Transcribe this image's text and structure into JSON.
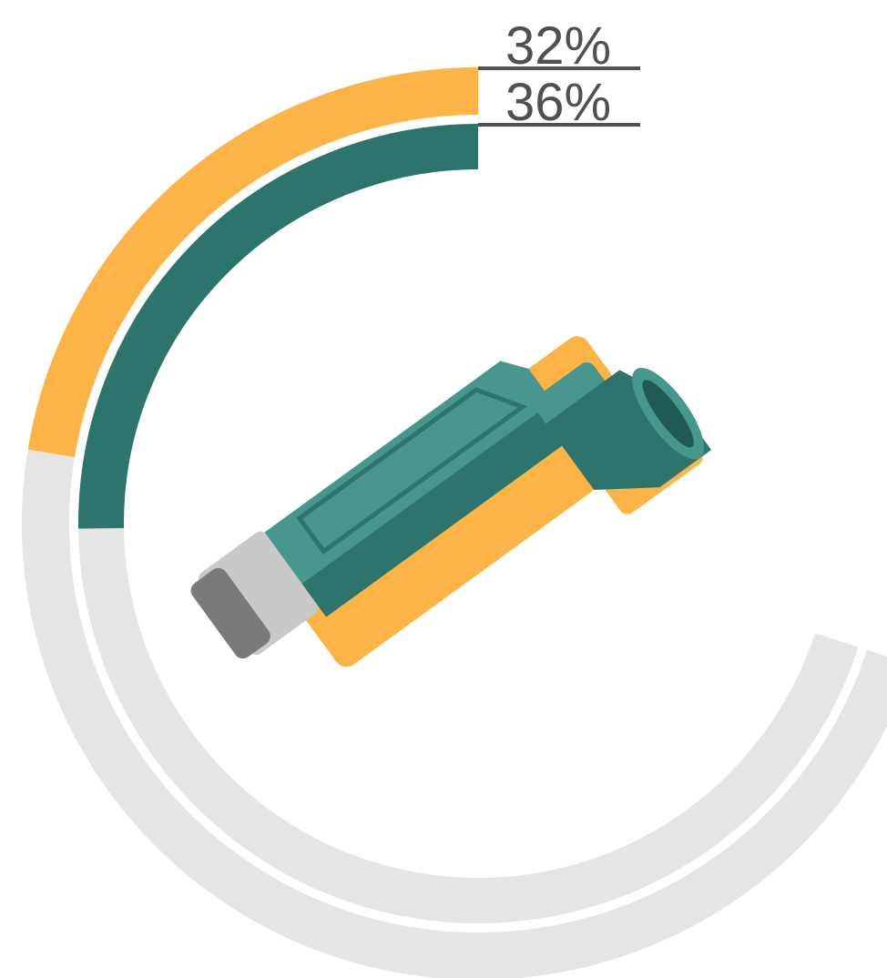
{
  "chart_data": {
    "type": "radial-bar",
    "values": [
      32,
      36
    ],
    "value_labels": [
      "32%",
      "36%"
    ],
    "colors": [
      "#fbb445",
      "#2c746c"
    ],
    "track_color": "#e5e5e5",
    "ylim": [
      0,
      100
    ]
  }
}
